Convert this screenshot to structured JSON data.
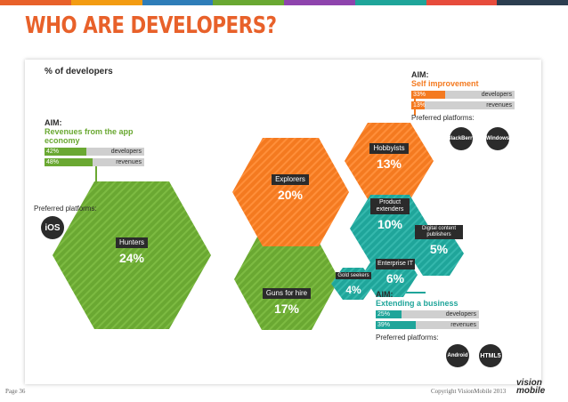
{
  "slide": {
    "title": "WHO ARE DEVELOPERS?",
    "page": "Page 36",
    "copyright": "Copyright VisionMobile 2013",
    "logo": "vision mobile"
  },
  "colors": {
    "accent": "#e8612a",
    "green": "#6aa832",
    "orange": "#f47a20",
    "teal": "#1fa59a",
    "dark": "#2b2b2b",
    "topbar": [
      "#e8612a",
      "#f39c12",
      "#2e7db9",
      "#6aa832",
      "#8e44ad",
      "#1fa59a",
      "#e74c3c",
      "#2c3e50"
    ]
  },
  "chart": {
    "measure_label": "% of developers",
    "segments": [
      {
        "name": "Hunters",
        "value": "24%"
      },
      {
        "name": "Explorers",
        "value": "20%"
      },
      {
        "name": "Hobbyists",
        "value": "13%"
      },
      {
        "name": "Guns for hire",
        "value": "17%"
      },
      {
        "name": "Product extenders",
        "value": "10%"
      },
      {
        "name": "Digital content publishers",
        "value": "5%"
      },
      {
        "name": "Enterprise IT",
        "value": "6%"
      },
      {
        "name": "Gold seekers",
        "value": "4%"
      }
    ]
  },
  "aims": {
    "left": {
      "head": "AIM:",
      "sub": "Revenues from the app economy",
      "rows": [
        {
          "value": "42%",
          "label": "developers",
          "fraction": 0.42
        },
        {
          "value": "48%",
          "label": "revenues",
          "fraction": 0.48
        }
      ],
      "platforms_label": "Preferred platforms:",
      "platforms": [
        "iOS"
      ]
    },
    "top": {
      "head": "AIM:",
      "sub": "Self improvement",
      "rows": [
        {
          "value": "33%",
          "label": "developers",
          "fraction": 0.33
        },
        {
          "value": "13%",
          "label": "revenues",
          "fraction": 0.13
        }
      ],
      "platforms_label": "Preferred platforms:",
      "platforms": [
        "BlackBerry",
        "Windows"
      ]
    },
    "bottom": {
      "head": "AIM:",
      "sub": "Extending a business",
      "rows": [
        {
          "value": "25%",
          "label": "developers",
          "fraction": 0.25
        },
        {
          "value": "39%",
          "label": "revenues",
          "fraction": 0.39
        }
      ],
      "platforms_label": "Preferred platforms:",
      "platforms": [
        "Android",
        "HTML5"
      ]
    }
  }
}
